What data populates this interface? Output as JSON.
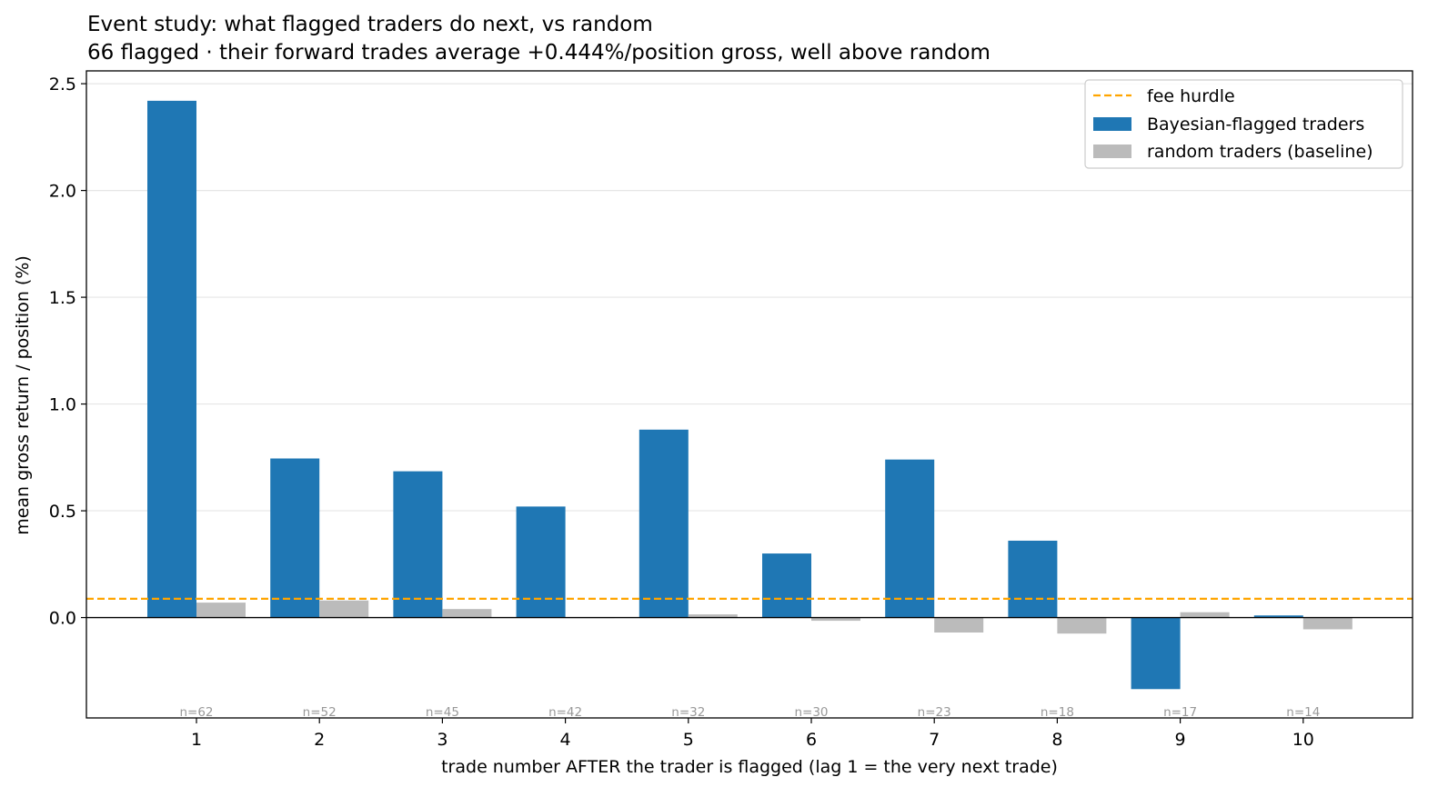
{
  "chart_data": {
    "type": "bar",
    "title": "Event study: what flagged traders do next, vs random",
    "subtitle": "66 flagged · their forward trades average +0.444%/position gross, well above random",
    "xlabel": "trade number AFTER the trader is flagged (lag 1 = the very next trade)",
    "ylabel": "mean gross return / position (%)",
    "ylim": [
      -0.47,
      2.56
    ],
    "yticks": [
      "2.5",
      "2.0",
      "1.5",
      "1.0",
      "0.5",
      "0.0"
    ],
    "ytick_values": [
      2.5,
      2.0,
      1.5,
      1.0,
      0.5,
      0.0
    ],
    "grid": "horizontal",
    "categories": [
      "1",
      "2",
      "3",
      "4",
      "5",
      "6",
      "7",
      "8",
      "9",
      "10"
    ],
    "series": [
      {
        "name": "Bayesian-flagged traders",
        "color": "#1f77b4",
        "values": [
          2.42,
          0.745,
          0.685,
          0.52,
          0.88,
          0.3,
          0.74,
          0.36,
          -0.335,
          0.01
        ]
      },
      {
        "name": "random traders (baseline)",
        "color": "#bbbbbb",
        "values": [
          0.07,
          0.08,
          0.04,
          0.0,
          0.015,
          -0.015,
          -0.07,
          -0.075,
          0.025,
          -0.055
        ]
      }
    ],
    "sample_sizes": [
      "n=62",
      "n=52",
      "n=45",
      "n=42",
      "n=32",
      "n=30",
      "n=23",
      "n=18",
      "n=17",
      "n=14"
    ],
    "reference_line": {
      "name": "fee hurdle",
      "value": 0.088,
      "color": "#ffa500",
      "style": "dashed"
    },
    "legend_position": "top-right"
  }
}
